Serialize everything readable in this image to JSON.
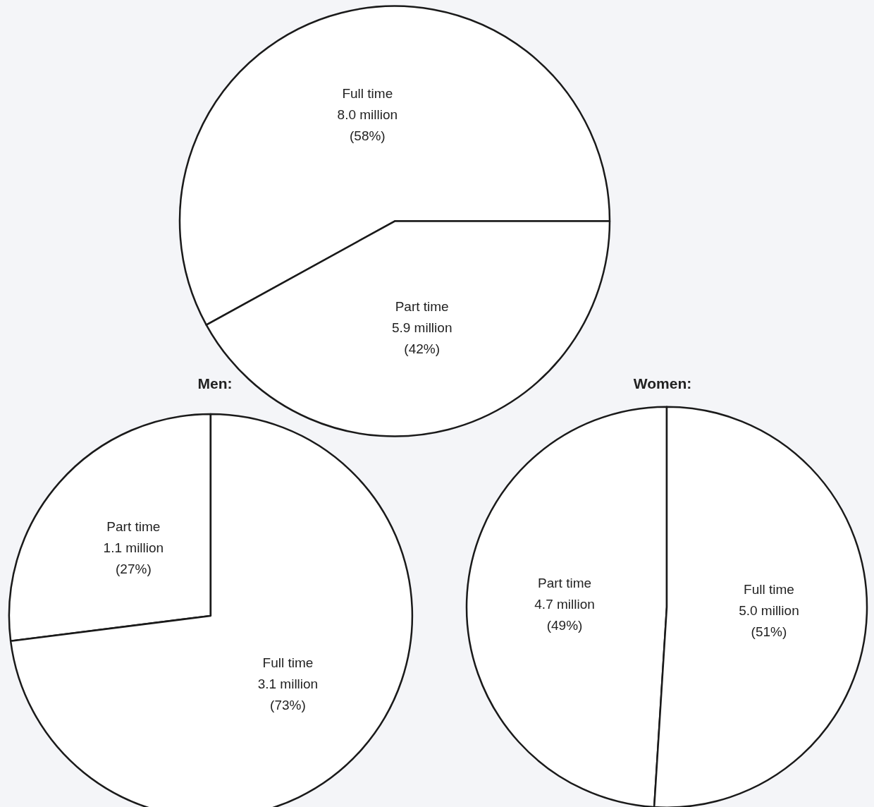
{
  "chart_data": [
    {
      "type": "pie",
      "categories": [
        "Full time",
        "Part time"
      ],
      "values": [
        58,
        42
      ],
      "colors": [
        "#ffffff",
        "#ffffff"
      ],
      "value_labels": [
        "8.0 million\n(58%)",
        "5.9 million\n(42%)"
      ]
    },
    {
      "type": "pie",
      "title": "Men:",
      "categories": [
        "Part time",
        "Full time"
      ],
      "values": [
        27,
        73
      ],
      "colors": [
        "#ffffff",
        "#ffffff"
      ],
      "value_labels": [
        "1.1 million\n(27%)",
        "3.1 million\n(73%)"
      ]
    },
    {
      "type": "pie",
      "title": "Women:",
      "categories": [
        "Part time",
        "Full time"
      ],
      "values": [
        49,
        51
      ],
      "colors": [
        "#ffffff",
        "#ffffff"
      ],
      "value_labels": [
        "4.7 million\n(49%)",
        "5.0 million\n(51%)"
      ]
    }
  ]
}
